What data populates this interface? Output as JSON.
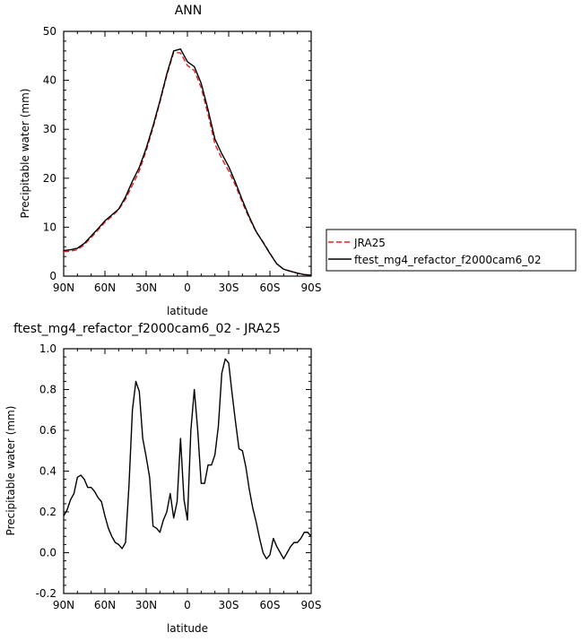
{
  "chart_data": [
    {
      "type": "line",
      "title": "ANN",
      "xlabel": "latitude",
      "ylabel": "Precipitable water  (mm)",
      "xlim": [
        90,
        -90
      ],
      "ylim": [
        0,
        50
      ],
      "xticks": [
        90,
        60,
        30,
        0,
        -30,
        -60,
        -90
      ],
      "xtick_labels": [
        "90N",
        "60N",
        "30N",
        "0",
        "30S",
        "60S",
        "90S"
      ],
      "yticks": [
        0,
        10,
        20,
        30,
        40,
        50
      ],
      "ytick_labels": [
        "0",
        "10",
        "20",
        "30",
        "40",
        "50"
      ],
      "legend_position": "right",
      "series": [
        {
          "name": "JRA25",
          "color": "#dd2222",
          "dash": "dashed",
          "x": [
            90,
            85,
            80,
            75,
            70,
            65,
            60,
            55,
            50,
            45,
            40,
            35,
            30,
            25,
            20,
            15,
            10,
            5,
            0,
            -5,
            -10,
            -15,
            -20,
            -25,
            -30,
            -35,
            -40,
            -45,
            -50,
            -55,
            -60,
            -65,
            -70,
            -75,
            -80,
            -85,
            -90
          ],
          "y": [
            5.0,
            5.1,
            5.4,
            6.4,
            7.9,
            9.4,
            11.0,
            12.2,
            13.6,
            15.7,
            18.6,
            21.5,
            25.6,
            30.3,
            35.5,
            41.0,
            45.7,
            45.6,
            43.0,
            42.0,
            38.5,
            33.0,
            27.0,
            24.0,
            21.5,
            18.5,
            15.0,
            11.8,
            9.0,
            7.0,
            4.7,
            2.5,
            1.4,
            1.0,
            0.6,
            0.3,
            0.2
          ]
        },
        {
          "name": "ftest_mg4_refactor_f2000cam6_02",
          "color": "#000000",
          "dash": "solid",
          "x": [
            90,
            85,
            80,
            75,
            70,
            65,
            60,
            55,
            50,
            45,
            40,
            35,
            30,
            25,
            20,
            15,
            10,
            5,
            0,
            -5,
            -10,
            -15,
            -20,
            -25,
            -30,
            -35,
            -40,
            -45,
            -50,
            -55,
            -60,
            -65,
            -70,
            -75,
            -80,
            -85,
            -90
          ],
          "y": [
            5.2,
            5.4,
            5.7,
            6.7,
            8.2,
            9.7,
            11.3,
            12.5,
            13.7,
            16.2,
            19.4,
            22.2,
            26.1,
            30.7,
            35.8,
            41.3,
            46.0,
            46.4,
            43.8,
            42.8,
            39.4,
            34.0,
            28.0,
            25.0,
            22.4,
            19.1,
            15.5,
            12.1,
            9.1,
            6.9,
            4.6,
            2.5,
            1.4,
            1.0,
            0.6,
            0.3,
            0.2
          ]
        }
      ]
    },
    {
      "type": "line",
      "title": "ftest_mg4_refactor_f2000cam6_02 - JRA25",
      "xlabel": "latitude",
      "ylabel": "Precipitable water  (mm)",
      "xlim": [
        90,
        -90
      ],
      "ylim": [
        -0.2,
        1.0
      ],
      "xticks": [
        90,
        60,
        30,
        0,
        -30,
        -60,
        -90
      ],
      "xtick_labels": [
        "90N",
        "60N",
        "30N",
        "0",
        "30S",
        "60S",
        "90S"
      ],
      "yticks": [
        -0.2,
        0.0,
        0.2,
        0.4,
        0.6,
        0.8,
        1.0
      ],
      "ytick_labels": [
        "-0.2",
        "0.0",
        "0.2",
        "0.4",
        "0.6",
        "0.8",
        "1.0"
      ],
      "series": [
        {
          "color": "#000000",
          "dash": "solid",
          "x": [
            90,
            87.5,
            85,
            82.5,
            80,
            77.5,
            75,
            72.5,
            70,
            67.5,
            65,
            62.5,
            60,
            57.5,
            55,
            52.5,
            50,
            47.5,
            45,
            42.5,
            40,
            37.5,
            35,
            32.5,
            30,
            27.5,
            25,
            22.5,
            20,
            17.5,
            15,
            12.5,
            10,
            7.5,
            5,
            2.5,
            0,
            -2.5,
            -5,
            -7.5,
            -10,
            -12.5,
            -15,
            -17.5,
            -20,
            -22.5,
            -25,
            -27.5,
            -30,
            -32.5,
            -35,
            -37.5,
            -40,
            -42.5,
            -45,
            -47.5,
            -50,
            -52.5,
            -55,
            -57.5,
            -60,
            -62.5,
            -65,
            -67.5,
            -70,
            -72.5,
            -75,
            -77.5,
            -80,
            -82.5,
            -85,
            -87.5,
            -90
          ],
          "y": [
            0.18,
            0.21,
            0.26,
            0.29,
            0.37,
            0.38,
            0.36,
            0.32,
            0.32,
            0.3,
            0.27,
            0.25,
            0.18,
            0.12,
            0.08,
            0.05,
            0.04,
            0.02,
            0.05,
            0.33,
            0.7,
            0.84,
            0.79,
            0.56,
            0.47,
            0.37,
            0.13,
            0.12,
            0.1,
            0.16,
            0.2,
            0.29,
            0.17,
            0.25,
            0.56,
            0.26,
            0.16,
            0.6,
            0.8,
            0.6,
            0.34,
            0.34,
            0.43,
            0.43,
            0.48,
            0.62,
            0.88,
            0.95,
            0.93,
            0.78,
            0.64,
            0.51,
            0.5,
            0.42,
            0.31,
            0.22,
            0.15,
            0.07,
            0.0,
            -0.03,
            -0.01,
            0.07,
            0.03,
            0.0,
            -0.03,
            0.0,
            0.03,
            0.05,
            0.05,
            0.07,
            0.1,
            0.1,
            0.08
          ]
        }
      ]
    }
  ]
}
